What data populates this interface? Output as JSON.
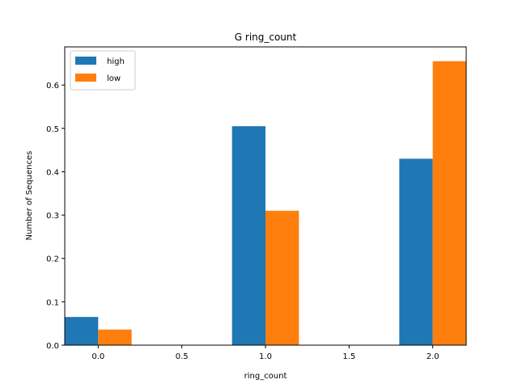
{
  "chart_data": {
    "type": "bar",
    "title": "G ring_count",
    "xlabel": "ring_count",
    "ylabel": "Number of Sequences",
    "x_ticks": [
      "0.0",
      "0.5",
      "1.0",
      "1.5",
      "2.0"
    ],
    "y_ticks": [
      "0.0",
      "0.1",
      "0.2",
      "0.3",
      "0.4",
      "0.5",
      "0.6"
    ],
    "xlim": [
      -0.2,
      2.2
    ],
    "ylim": [
      0,
      0.688
    ],
    "bar_width": 0.2,
    "x": [
      0,
      1,
      2
    ],
    "series": [
      {
        "name": "high",
        "color": "#1f77b4",
        "values": [
          0.065,
          0.505,
          0.43
        ]
      },
      {
        "name": "low",
        "color": "#ff7f0e",
        "values": [
          0.036,
          0.31,
          0.655
        ]
      }
    ],
    "legend_position": "top-left",
    "grid": false
  }
}
